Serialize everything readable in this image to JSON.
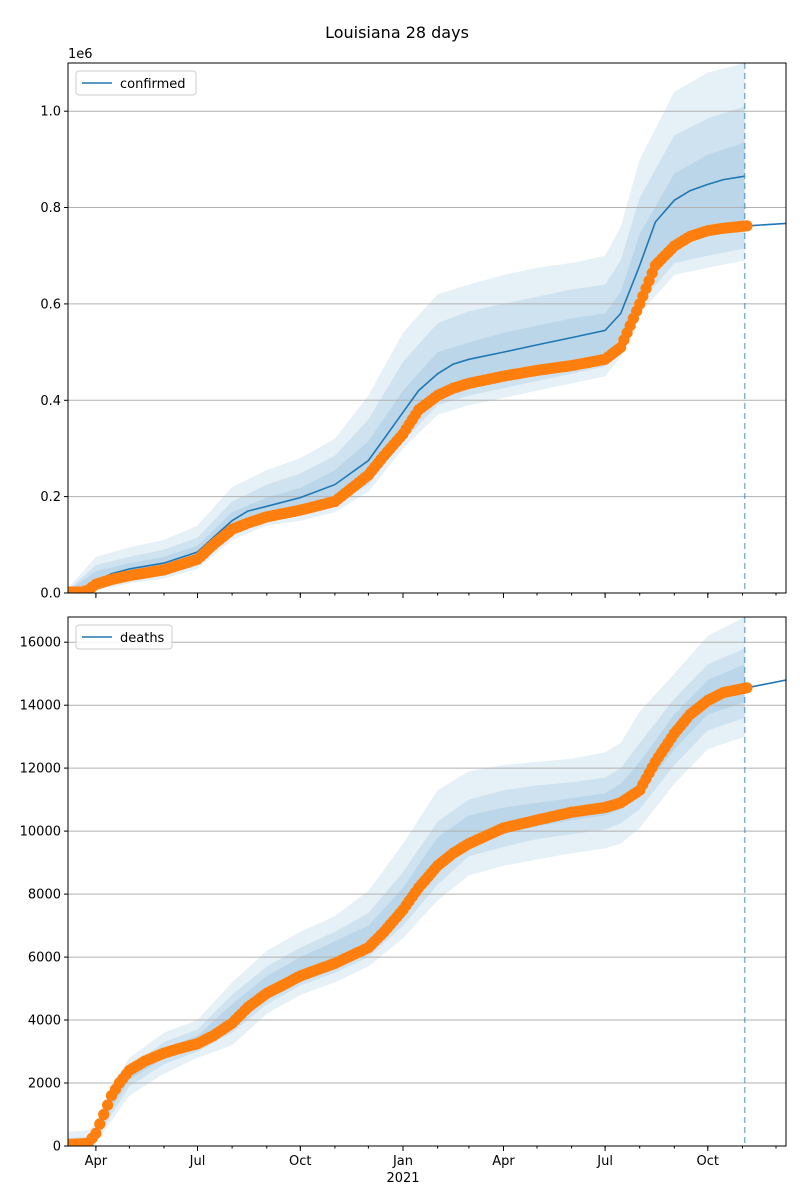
{
  "title": "Louisiana 28 days",
  "colors": {
    "model": "#1f77b4",
    "observed": "#ff7f0e",
    "band": "#1f77b4",
    "grid": "#b0b0b0",
    "axis": "#000000"
  },
  "chart_data": [
    {
      "type": "line",
      "panel": "confirmed",
      "offset_label": "1e6",
      "legend": {
        "label": "confirmed",
        "placement": "top-left"
      },
      "xlim": [
        "2020-03-07",
        "2021-12-10"
      ],
      "ylim": [
        0,
        1.1
      ],
      "yticks": [
        0.0,
        0.2,
        0.4,
        0.6,
        0.8,
        1.0
      ],
      "ytick_labels": [
        "0.0",
        "0.2",
        "0.4",
        "0.6",
        "0.8",
        "1.0"
      ],
      "grid": "horizontal",
      "forecast_start": "2021-11-03",
      "model": {
        "name": "confirmed",
        "x": [
          "2020-03-07",
          "2020-03-20",
          "2020-03-25",
          "2020-04-01",
          "2020-04-15",
          "2020-05-01",
          "2020-06-01",
          "2020-07-01",
          "2020-07-15",
          "2020-08-01",
          "2020-08-15",
          "2020-09-01",
          "2020-10-01",
          "2020-11-01",
          "2020-12-01",
          "2020-12-15",
          "2021-01-01",
          "2021-01-15",
          "2021-02-01",
          "2021-02-15",
          "2021-03-01",
          "2021-04-01",
          "2021-05-01",
          "2021-06-01",
          "2021-07-01",
          "2021-07-15",
          "2021-08-01",
          "2021-08-15",
          "2021-09-01",
          "2021-09-15",
          "2021-10-01",
          "2021-10-15",
          "2021-11-03"
        ],
        "y": [
          0.002,
          0.003,
          0.008,
          0.025,
          0.04,
          0.05,
          0.062,
          0.085,
          0.115,
          0.15,
          0.17,
          0.18,
          0.198,
          0.225,
          0.275,
          0.32,
          0.375,
          0.42,
          0.455,
          0.475,
          0.485,
          0.5,
          0.515,
          0.53,
          0.545,
          0.58,
          0.68,
          0.77,
          0.815,
          0.835,
          0.848,
          0.858,
          0.865
        ]
      },
      "bands": [
        {
          "x": [
            "2020-03-07",
            "2020-04-01",
            "2020-05-01",
            "2020-06-01",
            "2020-07-01",
            "2020-08-01",
            "2020-09-01",
            "2020-10-01",
            "2020-11-01",
            "2020-12-01",
            "2021-01-01",
            "2021-02-01",
            "2021-03-01",
            "2021-04-01",
            "2021-05-01",
            "2021-06-01",
            "2021-07-01",
            "2021-07-15",
            "2021-08-01",
            "2021-09-01",
            "2021-10-01",
            "2021-11-03"
          ],
          "lower": [
            0.0,
            0.005,
            0.02,
            0.03,
            0.05,
            0.11,
            0.14,
            0.15,
            0.168,
            0.21,
            0.3,
            0.37,
            0.39,
            0.405,
            0.42,
            0.435,
            0.45,
            0.49,
            0.58,
            0.66,
            0.675,
            0.69
          ],
          "upper": [
            0.01,
            0.075,
            0.095,
            0.11,
            0.14,
            0.22,
            0.255,
            0.28,
            0.32,
            0.41,
            0.54,
            0.62,
            0.64,
            0.66,
            0.675,
            0.685,
            0.7,
            0.76,
            0.9,
            1.04,
            1.08,
            1.1
          ]
        },
        {
          "x": [
            "2020-03-07",
            "2020-04-01",
            "2020-05-01",
            "2020-06-01",
            "2020-07-01",
            "2020-08-01",
            "2020-09-01",
            "2020-10-01",
            "2020-11-01",
            "2020-12-01",
            "2021-01-01",
            "2021-02-01",
            "2021-03-01",
            "2021-04-01",
            "2021-05-01",
            "2021-06-01",
            "2021-07-01",
            "2021-07-15",
            "2021-08-01",
            "2021-09-01",
            "2021-10-01",
            "2021-11-03"
          ],
          "lower": [
            0.0,
            0.01,
            0.028,
            0.04,
            0.06,
            0.12,
            0.15,
            0.162,
            0.182,
            0.225,
            0.315,
            0.39,
            0.41,
            0.425,
            0.44,
            0.455,
            0.47,
            0.51,
            0.6,
            0.685,
            0.7,
            0.715
          ],
          "upper": [
            0.006,
            0.058,
            0.075,
            0.09,
            0.115,
            0.19,
            0.225,
            0.248,
            0.285,
            0.36,
            0.48,
            0.56,
            0.585,
            0.6,
            0.615,
            0.63,
            0.64,
            0.69,
            0.82,
            0.95,
            0.985,
            1.01
          ]
        },
        {
          "x": [
            "2020-03-07",
            "2020-04-01",
            "2020-05-01",
            "2020-06-01",
            "2020-07-01",
            "2020-08-01",
            "2020-09-01",
            "2020-10-01",
            "2020-11-01",
            "2020-12-01",
            "2021-01-01",
            "2021-02-01",
            "2021-03-01",
            "2021-04-01",
            "2021-05-01",
            "2021-06-01",
            "2021-07-01",
            "2021-07-15",
            "2021-08-01",
            "2021-09-01",
            "2021-10-01",
            "2021-11-03"
          ],
          "lower": [
            0.0,
            0.015,
            0.035,
            0.05,
            0.07,
            0.13,
            0.16,
            0.175,
            0.195,
            0.24,
            0.335,
            0.41,
            0.43,
            0.445,
            0.46,
            0.475,
            0.49,
            0.53,
            0.63,
            0.72,
            0.74,
            0.755
          ],
          "upper": [
            0.004,
            0.045,
            0.062,
            0.075,
            0.098,
            0.168,
            0.198,
            0.218,
            0.255,
            0.315,
            0.42,
            0.5,
            0.52,
            0.54,
            0.555,
            0.57,
            0.58,
            0.625,
            0.745,
            0.87,
            0.91,
            0.935
          ]
        }
      ],
      "observed": {
        "x": [
          "2020-03-07",
          "2020-03-20",
          "2020-03-25",
          "2020-04-01",
          "2020-04-15",
          "2020-05-01",
          "2020-06-01",
          "2020-07-01",
          "2020-07-15",
          "2020-08-01",
          "2020-08-15",
          "2020-09-01",
          "2020-10-01",
          "2020-11-01",
          "2020-12-01",
          "2020-12-15",
          "2021-01-01",
          "2021-01-15",
          "2021-02-01",
          "2021-02-15",
          "2021-03-01",
          "2021-04-01",
          "2021-05-01",
          "2021-06-01",
          "2021-07-01",
          "2021-07-15",
          "2021-08-01",
          "2021-08-15",
          "2021-09-01",
          "2021-09-15",
          "2021-10-01",
          "2021-10-15",
          "2021-11-05"
        ],
        "y": [
          0.002,
          0.002,
          0.006,
          0.018,
          0.028,
          0.036,
          0.048,
          0.07,
          0.1,
          0.132,
          0.145,
          0.158,
          0.172,
          0.19,
          0.245,
          0.285,
          0.33,
          0.38,
          0.41,
          0.425,
          0.435,
          0.45,
          0.462,
          0.472,
          0.485,
          0.51,
          0.6,
          0.68,
          0.72,
          0.74,
          0.752,
          0.757,
          0.762
        ]
      },
      "tail": {
        "x": [
          "2021-11-05",
          "2021-12-10"
        ],
        "y": [
          0.762,
          0.767
        ]
      }
    },
    {
      "type": "line",
      "panel": "deaths",
      "legend": {
        "label": "deaths",
        "placement": "top-left"
      },
      "xlim": [
        "2020-03-07",
        "2021-12-10"
      ],
      "ylim": [
        0,
        16800
      ],
      "yticks": [
        0,
        2000,
        4000,
        6000,
        8000,
        10000,
        12000,
        14000,
        16000
      ],
      "ytick_labels": [
        "0",
        "2000",
        "4000",
        "6000",
        "8000",
        "10000",
        "12000",
        "14000",
        "16000"
      ],
      "grid": "horizontal",
      "forecast_start": "2021-11-03",
      "xticks": [
        "2020-04-01",
        "2020-07-01",
        "2020-10-01",
        "2021-01-01",
        "2021-04-01",
        "2021-07-01",
        "2021-10-01"
      ],
      "xtick_labels": [
        "Apr",
        "Jul",
        "Oct",
        "Jan",
        "Apr",
        "Jul",
        "Oct"
      ],
      "year_label": "2021",
      "model": {
        "name": "deaths",
        "x": [
          "2021-11-05",
          "2021-12-10"
        ],
        "y": [
          14550,
          14800
        ]
      },
      "bands": [
        {
          "x": [
            "2020-03-07",
            "2020-03-25",
            "2020-04-01",
            "2020-04-15",
            "2020-05-01",
            "2020-06-01",
            "2020-07-01",
            "2020-08-01",
            "2020-09-01",
            "2020-10-01",
            "2020-11-01",
            "2020-12-01",
            "2021-01-01",
            "2021-02-01",
            "2021-03-01",
            "2021-04-01",
            "2021-05-01",
            "2021-06-01",
            "2021-07-01",
            "2021-07-15",
            "2021-08-01",
            "2021-09-01",
            "2021-10-01",
            "2021-11-03"
          ],
          "lower": [
            0,
            0,
            100,
            800,
            1600,
            2300,
            2800,
            3200,
            4200,
            4800,
            5200,
            5700,
            6600,
            7800,
            8600,
            8900,
            9100,
            9300,
            9450,
            9600,
            10100,
            11500,
            12600,
            13000
          ],
          "upper": [
            450,
            500,
            700,
            1900,
            2800,
            3600,
            4000,
            5200,
            6200,
            6800,
            7300,
            8100,
            9600,
            11300,
            11900,
            12100,
            12200,
            12300,
            12500,
            12800,
            13800,
            15000,
            16200,
            16800
          ]
        },
        {
          "x": [
            "2020-03-07",
            "2020-03-25",
            "2020-04-01",
            "2020-04-15",
            "2020-05-01",
            "2020-06-01",
            "2020-07-01",
            "2020-08-01",
            "2020-09-01",
            "2020-10-01",
            "2020-11-01",
            "2020-12-01",
            "2021-01-01",
            "2021-02-01",
            "2021-03-01",
            "2021-04-01",
            "2021-05-01",
            "2021-06-01",
            "2021-07-01",
            "2021-07-15",
            "2021-08-01",
            "2021-09-01",
            "2021-10-01",
            "2021-11-03"
          ],
          "lower": [
            0,
            0,
            200,
            1000,
            1900,
            2600,
            3000,
            3600,
            4500,
            5100,
            5500,
            6000,
            7000,
            8300,
            9200,
            9500,
            9750,
            9900,
            10050,
            10250,
            10700,
            12100,
            13200,
            13600
          ],
          "upper": [
            250,
            300,
            550,
            1600,
            2500,
            3300,
            3700,
            4800,
            5700,
            6300,
            6800,
            7400,
            8700,
            10300,
            11000,
            11300,
            11450,
            11550,
            11700,
            12000,
            12800,
            14200,
            15300,
            15800
          ]
        },
        {
          "x": [
            "2020-03-07",
            "2020-03-25",
            "2020-04-01",
            "2020-04-15",
            "2020-05-01",
            "2020-06-01",
            "2020-07-01",
            "2020-08-01",
            "2020-09-01",
            "2020-10-01",
            "2020-11-01",
            "2020-12-01",
            "2021-01-01",
            "2021-02-01",
            "2021-03-01",
            "2021-04-01",
            "2021-05-01",
            "2021-06-01",
            "2021-07-01",
            "2021-07-15",
            "2021-08-01",
            "2021-09-01",
            "2021-10-01",
            "2021-11-03"
          ],
          "lower": [
            0,
            0,
            300,
            1200,
            2100,
            2800,
            3200,
            3900,
            4800,
            5300,
            5800,
            6300,
            7400,
            8700,
            9600,
            9900,
            10150,
            10350,
            10500,
            10700,
            11200,
            12600,
            13700,
            14100
          ],
          "upper": [
            150,
            200,
            450,
            1400,
            2300,
            3100,
            3500,
            4500,
            5400,
            6000,
            6500,
            7000,
            8200,
            9800,
            10500,
            10750,
            10900,
            11050,
            11200,
            11500,
            12200,
            13700,
            14800,
            15300
          ]
        }
      ],
      "observed": {
        "x": [
          "2020-03-07",
          "2020-03-25",
          "2020-04-01",
          "2020-04-08",
          "2020-04-15",
          "2020-04-22",
          "2020-05-01",
          "2020-05-15",
          "2020-06-01",
          "2020-06-15",
          "2020-07-01",
          "2020-07-15",
          "2020-08-01",
          "2020-08-15",
          "2020-09-01",
          "2020-09-15",
          "2020-10-01",
          "2020-11-01",
          "2020-12-01",
          "2020-12-15",
          "2021-01-01",
          "2021-01-15",
          "2021-02-01",
          "2021-02-15",
          "2021-03-01",
          "2021-04-01",
          "2021-05-01",
          "2021-06-01",
          "2021-07-01",
          "2021-07-15",
          "2021-08-01",
          "2021-08-15",
          "2021-09-01",
          "2021-09-15",
          "2021-10-01",
          "2021-10-15",
          "2021-11-05"
        ],
        "y": [
          50,
          80,
          400,
          1000,
          1600,
          2000,
          2400,
          2700,
          2950,
          3100,
          3250,
          3500,
          3900,
          4400,
          4850,
          5100,
          5400,
          5800,
          6300,
          6800,
          7500,
          8200,
          8900,
          9300,
          9600,
          10100,
          10350,
          10600,
          10750,
          10900,
          11300,
          12200,
          13100,
          13700,
          14150,
          14400,
          14550
        ]
      }
    }
  ]
}
